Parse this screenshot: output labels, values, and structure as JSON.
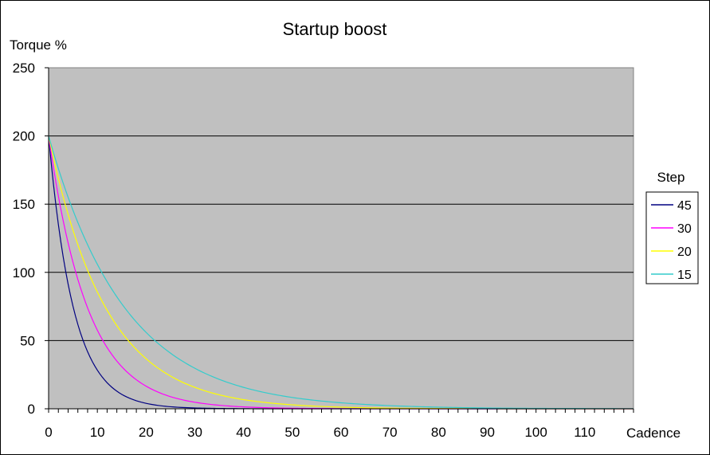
{
  "chart_data": {
    "type": "line",
    "title": "Startup boost",
    "ylabel": "Torque %",
    "xlabel": "Cadence",
    "ylim": [
      0,
      250
    ],
    "xlim": [
      0,
      120
    ],
    "y_ticks": [
      "0",
      "50",
      "100",
      "150",
      "200",
      "250"
    ],
    "x_ticks": [
      "0",
      "10",
      "20",
      "30",
      "40",
      "50",
      "60",
      "70",
      "80",
      "90",
      "100",
      "110"
    ],
    "grid": true,
    "plot_background": "#c0c0c0",
    "legend_title": "Step",
    "legend_position": "right",
    "x": [
      0,
      2.5,
      5,
      7.5,
      10,
      15,
      20,
      25,
      30,
      40,
      50,
      60,
      70,
      80,
      90,
      100,
      110,
      120
    ],
    "series": [
      {
        "name": "45",
        "color": "#000080",
        "values": [
          200,
          122.6,
          75.2,
          46.1,
          28.3,
          10.6,
          4.0,
          1.5,
          0.6,
          0.1,
          0.0,
          0.0,
          0.0,
          0.0,
          0.0,
          0.0,
          0.0,
          0.0
        ]
      },
      {
        "name": "30",
        "color": "#ff00ff",
        "values": [
          200,
          146.5,
          107.4,
          78.7,
          57.6,
          30.9,
          16.6,
          8.9,
          4.8,
          1.4,
          0.4,
          0.1,
          0.0,
          0.0,
          0.0,
          0.0,
          0.0,
          0.0
        ]
      },
      {
        "name": "20",
        "color": "#ffff00",
        "values": [
          200,
          161.8,
          130.9,
          105.9,
          85.6,
          56.0,
          36.7,
          24.0,
          15.7,
          6.7,
          2.9,
          1.2,
          0.5,
          0.2,
          0.1,
          0.0,
          0.0,
          0.0
        ]
      },
      {
        "name": "15",
        "color": "#33cccc",
        "values": [
          200,
          170.6,
          145.5,
          124.1,
          105.9,
          77.0,
          56.0,
          40.8,
          29.7,
          15.7,
          8.3,
          4.4,
          2.3,
          1.2,
          0.6,
          0.3,
          0.2,
          0.1
        ]
      }
    ]
  }
}
